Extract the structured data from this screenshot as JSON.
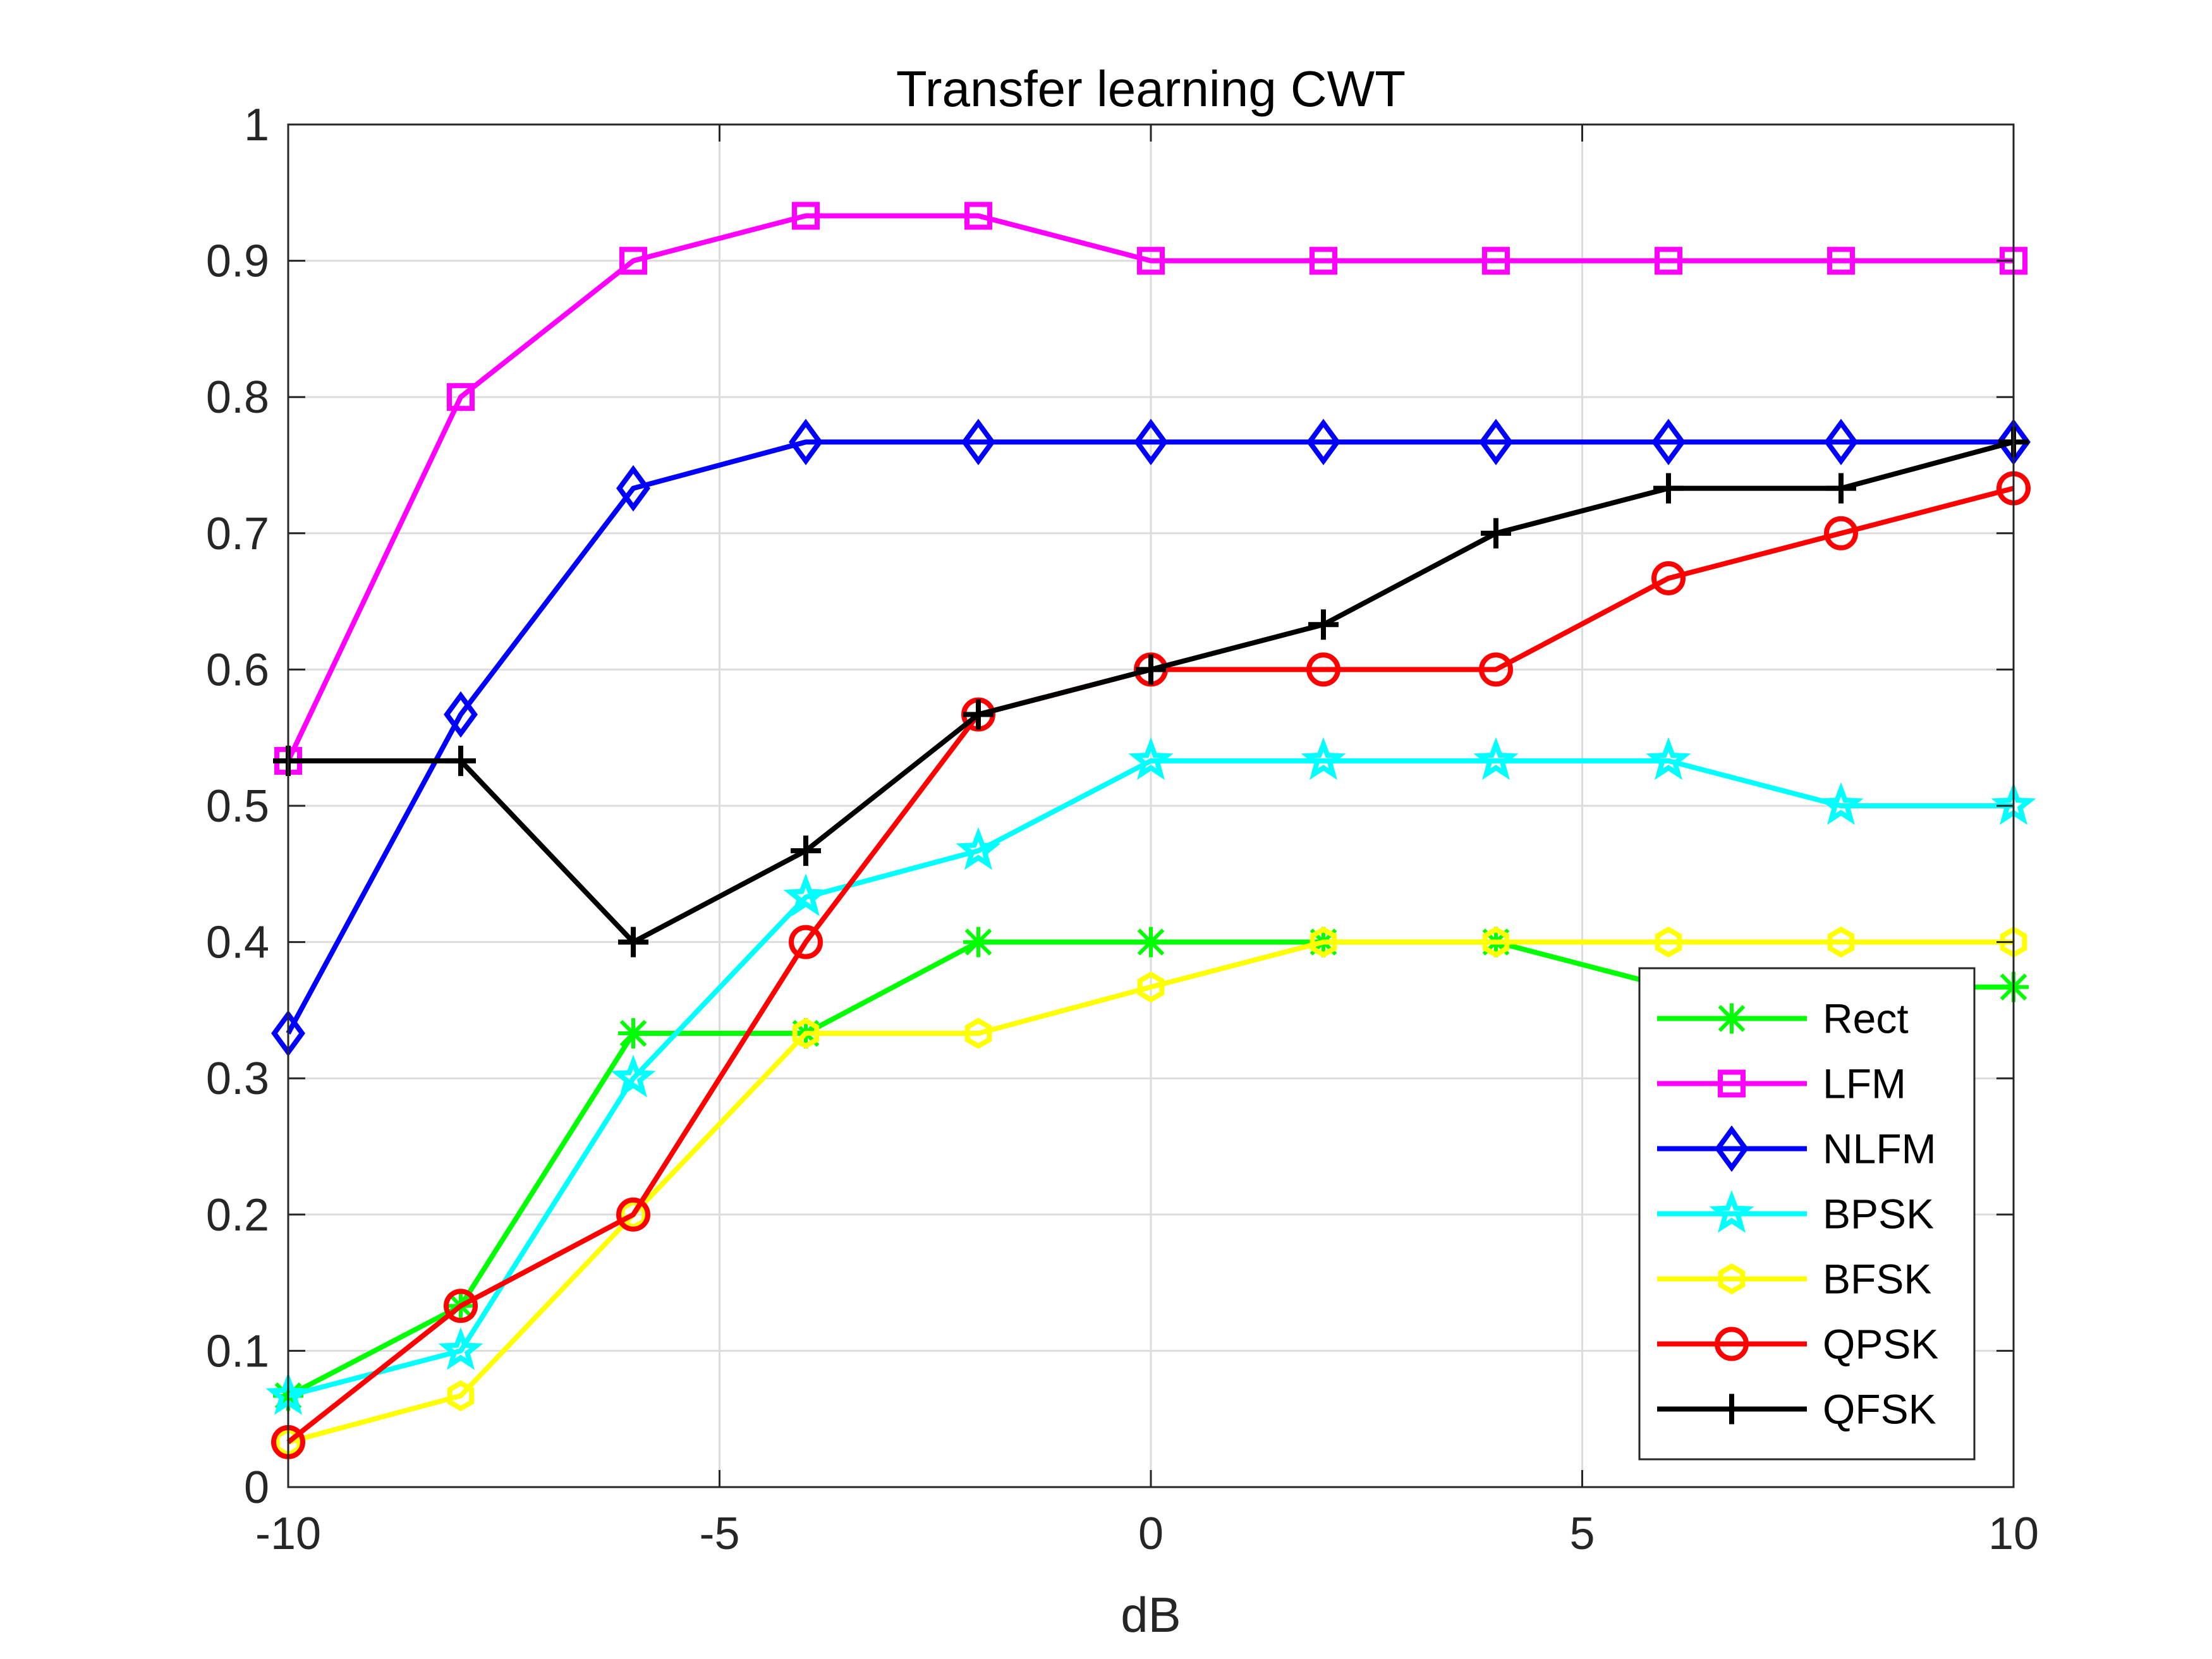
{
  "chart_data": {
    "type": "line",
    "title": "Transfer learning CWT",
    "xlabel": "dB",
    "ylabel": "",
    "xlim": [
      -10,
      10
    ],
    "ylim": [
      0,
      1
    ],
    "xticks": [
      -10,
      -5,
      0,
      5,
      10
    ],
    "xtick_labels": [
      "-10",
      "-5",
      "0",
      "5",
      "10"
    ],
    "yticks": [
      0,
      0.1,
      0.2,
      0.3,
      0.4,
      0.5,
      0.6,
      0.7,
      0.8,
      0.9,
      1
    ],
    "ytick_labels": [
      "0",
      "0.1",
      "0.2",
      "0.3",
      "0.4",
      "0.5",
      "0.6",
      "0.7",
      "0.8",
      "0.9",
      "1"
    ],
    "grid": true,
    "legend_position": "bottom-right",
    "x": [
      -10,
      -8,
      -6,
      -4,
      -2,
      0,
      2,
      4,
      6,
      8,
      10
    ],
    "series": [
      {
        "name": "Rect",
        "color": "#00ff00",
        "marker": "asterisk",
        "values": [
          0.067,
          0.133,
          0.333,
          0.333,
          0.4,
          0.4,
          0.4,
          0.4,
          0.367,
          0.367,
          0.367
        ]
      },
      {
        "name": "LFM",
        "color": "#ff00ff",
        "marker": "square",
        "values": [
          0.533,
          0.8,
          0.9,
          0.933,
          0.933,
          0.9,
          0.9,
          0.9,
          0.9,
          0.9,
          0.9
        ]
      },
      {
        "name": "NLFM",
        "color": "#0000ff",
        "marker": "diamond",
        "values": [
          0.333,
          0.567,
          0.733,
          0.767,
          0.767,
          0.767,
          0.767,
          0.767,
          0.767,
          0.767,
          0.767
        ]
      },
      {
        "name": "BPSK",
        "color": "#00ffff",
        "marker": "star",
        "values": [
          0.067,
          0.1,
          0.3,
          0.433,
          0.467,
          0.533,
          0.533,
          0.533,
          0.533,
          0.5,
          0.5
        ]
      },
      {
        "name": "BFSK",
        "color": "#ffff00",
        "marker": "hexagon",
        "values": [
          0.033,
          0.067,
          0.2,
          0.333,
          0.333,
          0.367,
          0.4,
          0.4,
          0.4,
          0.4,
          0.4
        ]
      },
      {
        "name": "QPSK",
        "color": "#ff0000",
        "marker": "circle",
        "values": [
          0.033,
          0.133,
          0.2,
          0.4,
          0.567,
          0.6,
          0.6,
          0.6,
          0.667,
          0.7,
          0.733
        ]
      },
      {
        "name": "QFSK",
        "color": "#000000",
        "marker": "plus",
        "values": [
          0.533,
          0.533,
          0.4,
          0.467,
          0.567,
          0.6,
          0.633,
          0.7,
          0.733,
          0.733,
          0.767
        ]
      }
    ]
  }
}
